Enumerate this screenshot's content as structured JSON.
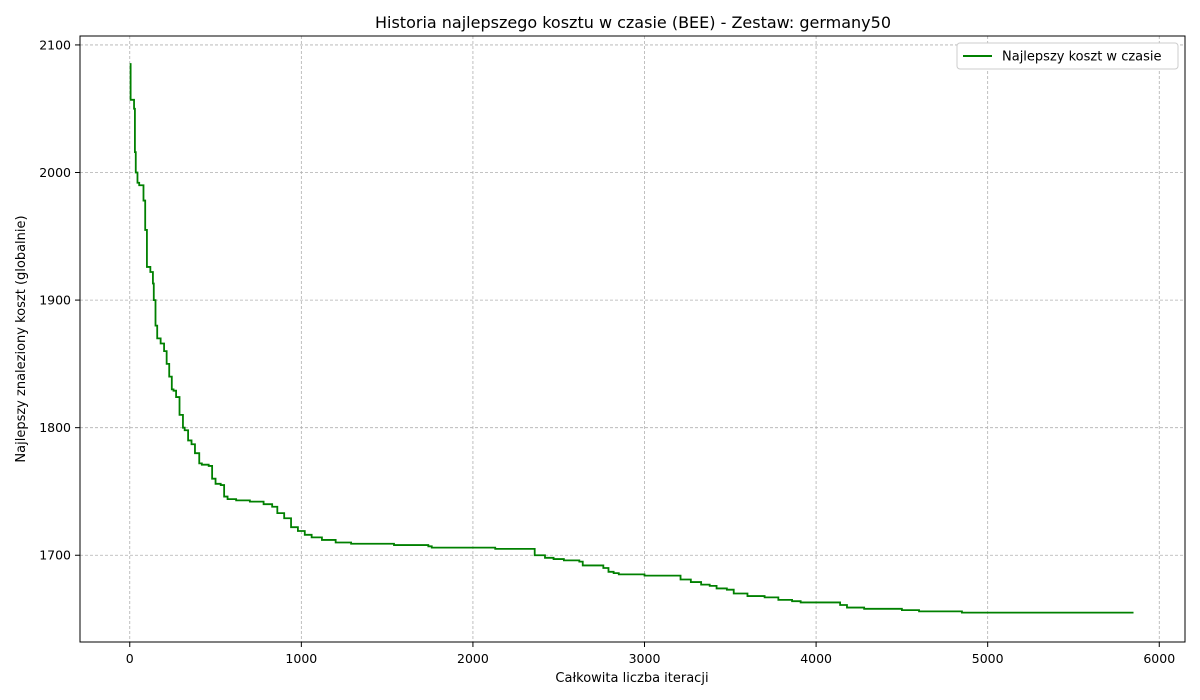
{
  "chart_data": {
    "type": "line",
    "title": "Historia najlepszego kosztu w czasie (BEE) - Zestaw: germany50",
    "xlabel": "Całkowita liczba iteracji",
    "ylabel": "Najlepszy znaleziony koszt (globalnie)",
    "xlim": [
      -290,
      6150
    ],
    "ylim": [
      1632,
      2107
    ],
    "xticks": [
      0,
      1000,
      2000,
      3000,
      4000,
      5000,
      6000
    ],
    "yticks": [
      1700,
      1800,
      1900,
      2000,
      2100
    ],
    "grid": true,
    "legend_position": "top-right",
    "series": [
      {
        "name": "Najlepszy koszt w czasie",
        "color": "#008000",
        "step": true,
        "x": [
          0,
          5,
          25,
          30,
          35,
          45,
          55,
          80,
          90,
          100,
          120,
          135,
          140,
          150,
          160,
          180,
          200,
          215,
          230,
          245,
          255,
          270,
          290,
          310,
          320,
          340,
          360,
          380,
          405,
          420,
          460,
          480,
          500,
          530,
          550,
          570,
          620,
          700,
          780,
          830,
          860,
          900,
          940,
          980,
          1020,
          1060,
          1120,
          1200,
          1290,
          1540,
          1740,
          1760,
          2100,
          2130,
          2360,
          2420,
          2470,
          2530,
          2620,
          2640,
          2760,
          2790,
          2820,
          2850,
          3000,
          3210,
          3270,
          3330,
          3380,
          3420,
          3480,
          3520,
          3600,
          3700,
          3780,
          3860,
          3910,
          4140,
          4180,
          4280,
          4500,
          4600,
          4850,
          5850
        ],
        "y": [
          2085,
          2057,
          2050,
          2016,
          2000,
          1992,
          1990,
          1978,
          1955,
          1926,
          1922,
          1913,
          1900,
          1880,
          1870,
          1866,
          1860,
          1850,
          1840,
          1830,
          1829,
          1824,
          1810,
          1800,
          1798,
          1790,
          1787,
          1780,
          1772,
          1771,
          1770,
          1760,
          1756,
          1755,
          1746,
          1744,
          1743,
          1742,
          1740,
          1738,
          1733,
          1729,
          1722,
          1719,
          1716,
          1714,
          1712,
          1710,
          1709,
          1708,
          1707,
          1706,
          1706,
          1705,
          1700,
          1698,
          1697,
          1696,
          1695,
          1692,
          1690,
          1687,
          1686,
          1685,
          1684,
          1681,
          1679,
          1677,
          1676,
          1674,
          1673,
          1670,
          1668,
          1667,
          1665,
          1664,
          1663,
          1661,
          1659,
          1658,
          1657,
          1656,
          1655,
          1655
        ]
      }
    ]
  }
}
